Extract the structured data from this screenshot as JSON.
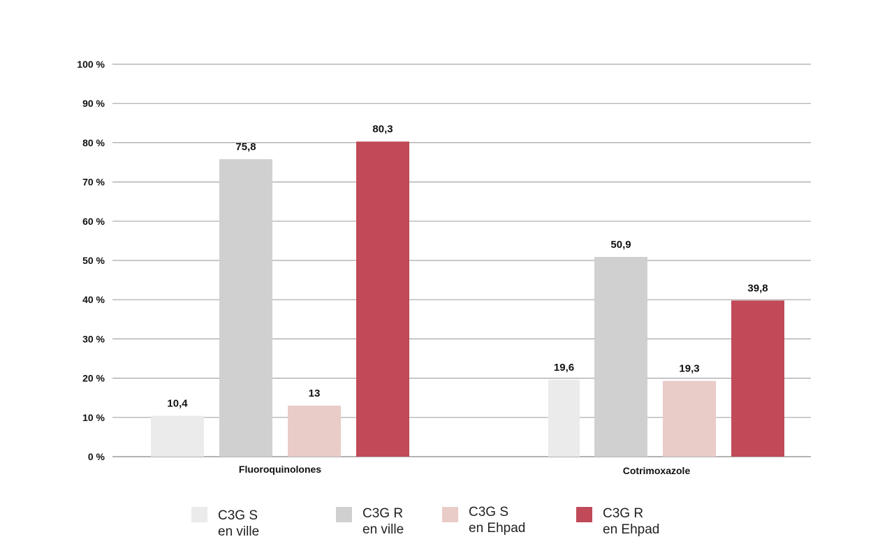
{
  "chart_data": {
    "type": "bar",
    "categories": [
      "Fluoroquinolones",
      "Cotrimoxazole"
    ],
    "series": [
      {
        "name": "C3G S en ville",
        "values": [
          10.4,
          19.6
        ],
        "color": "#ebebeb"
      },
      {
        "name": "C3G R en ville",
        "values": [
          75.8,
          50.9
        ],
        "color": "#d0d0d0"
      },
      {
        "name": "C3G S en Ehpad",
        "values": [
          13,
          19.3
        ],
        "color": "#e9cbc8"
      },
      {
        "name": "C3G R en Ehpad",
        "values": [
          80.3,
          39.8
        ],
        "color": "#c04a57"
      }
    ],
    "value_labels": [
      [
        "10,4",
        "19,6"
      ],
      [
        "75,8",
        "50,9"
      ],
      [
        "13",
        "19,3"
      ],
      [
        "80,3",
        "39,8"
      ]
    ],
    "yticks": [
      "0 %",
      "10 %",
      "20 %",
      "30 %",
      "40 %",
      "50 %",
      "60 %",
      "70 %",
      "80 %",
      "90 %",
      "100 %"
    ],
    "ylim": [
      0,
      100
    ],
    "grid": true,
    "legend_position": "bottom"
  },
  "legend": [
    {
      "line1": "C3G S",
      "line2": "en ville",
      "color": "#ebebeb"
    },
    {
      "line1": "C3G R",
      "line2": "en ville",
      "color": "#d0d0d0"
    },
    {
      "line1": "C3G S",
      "line2": "en Ehpad",
      "color": "#e9cbc8"
    },
    {
      "line1": "C3G R",
      "line2": "en Ehpad",
      "color": "#c04a57"
    }
  ]
}
